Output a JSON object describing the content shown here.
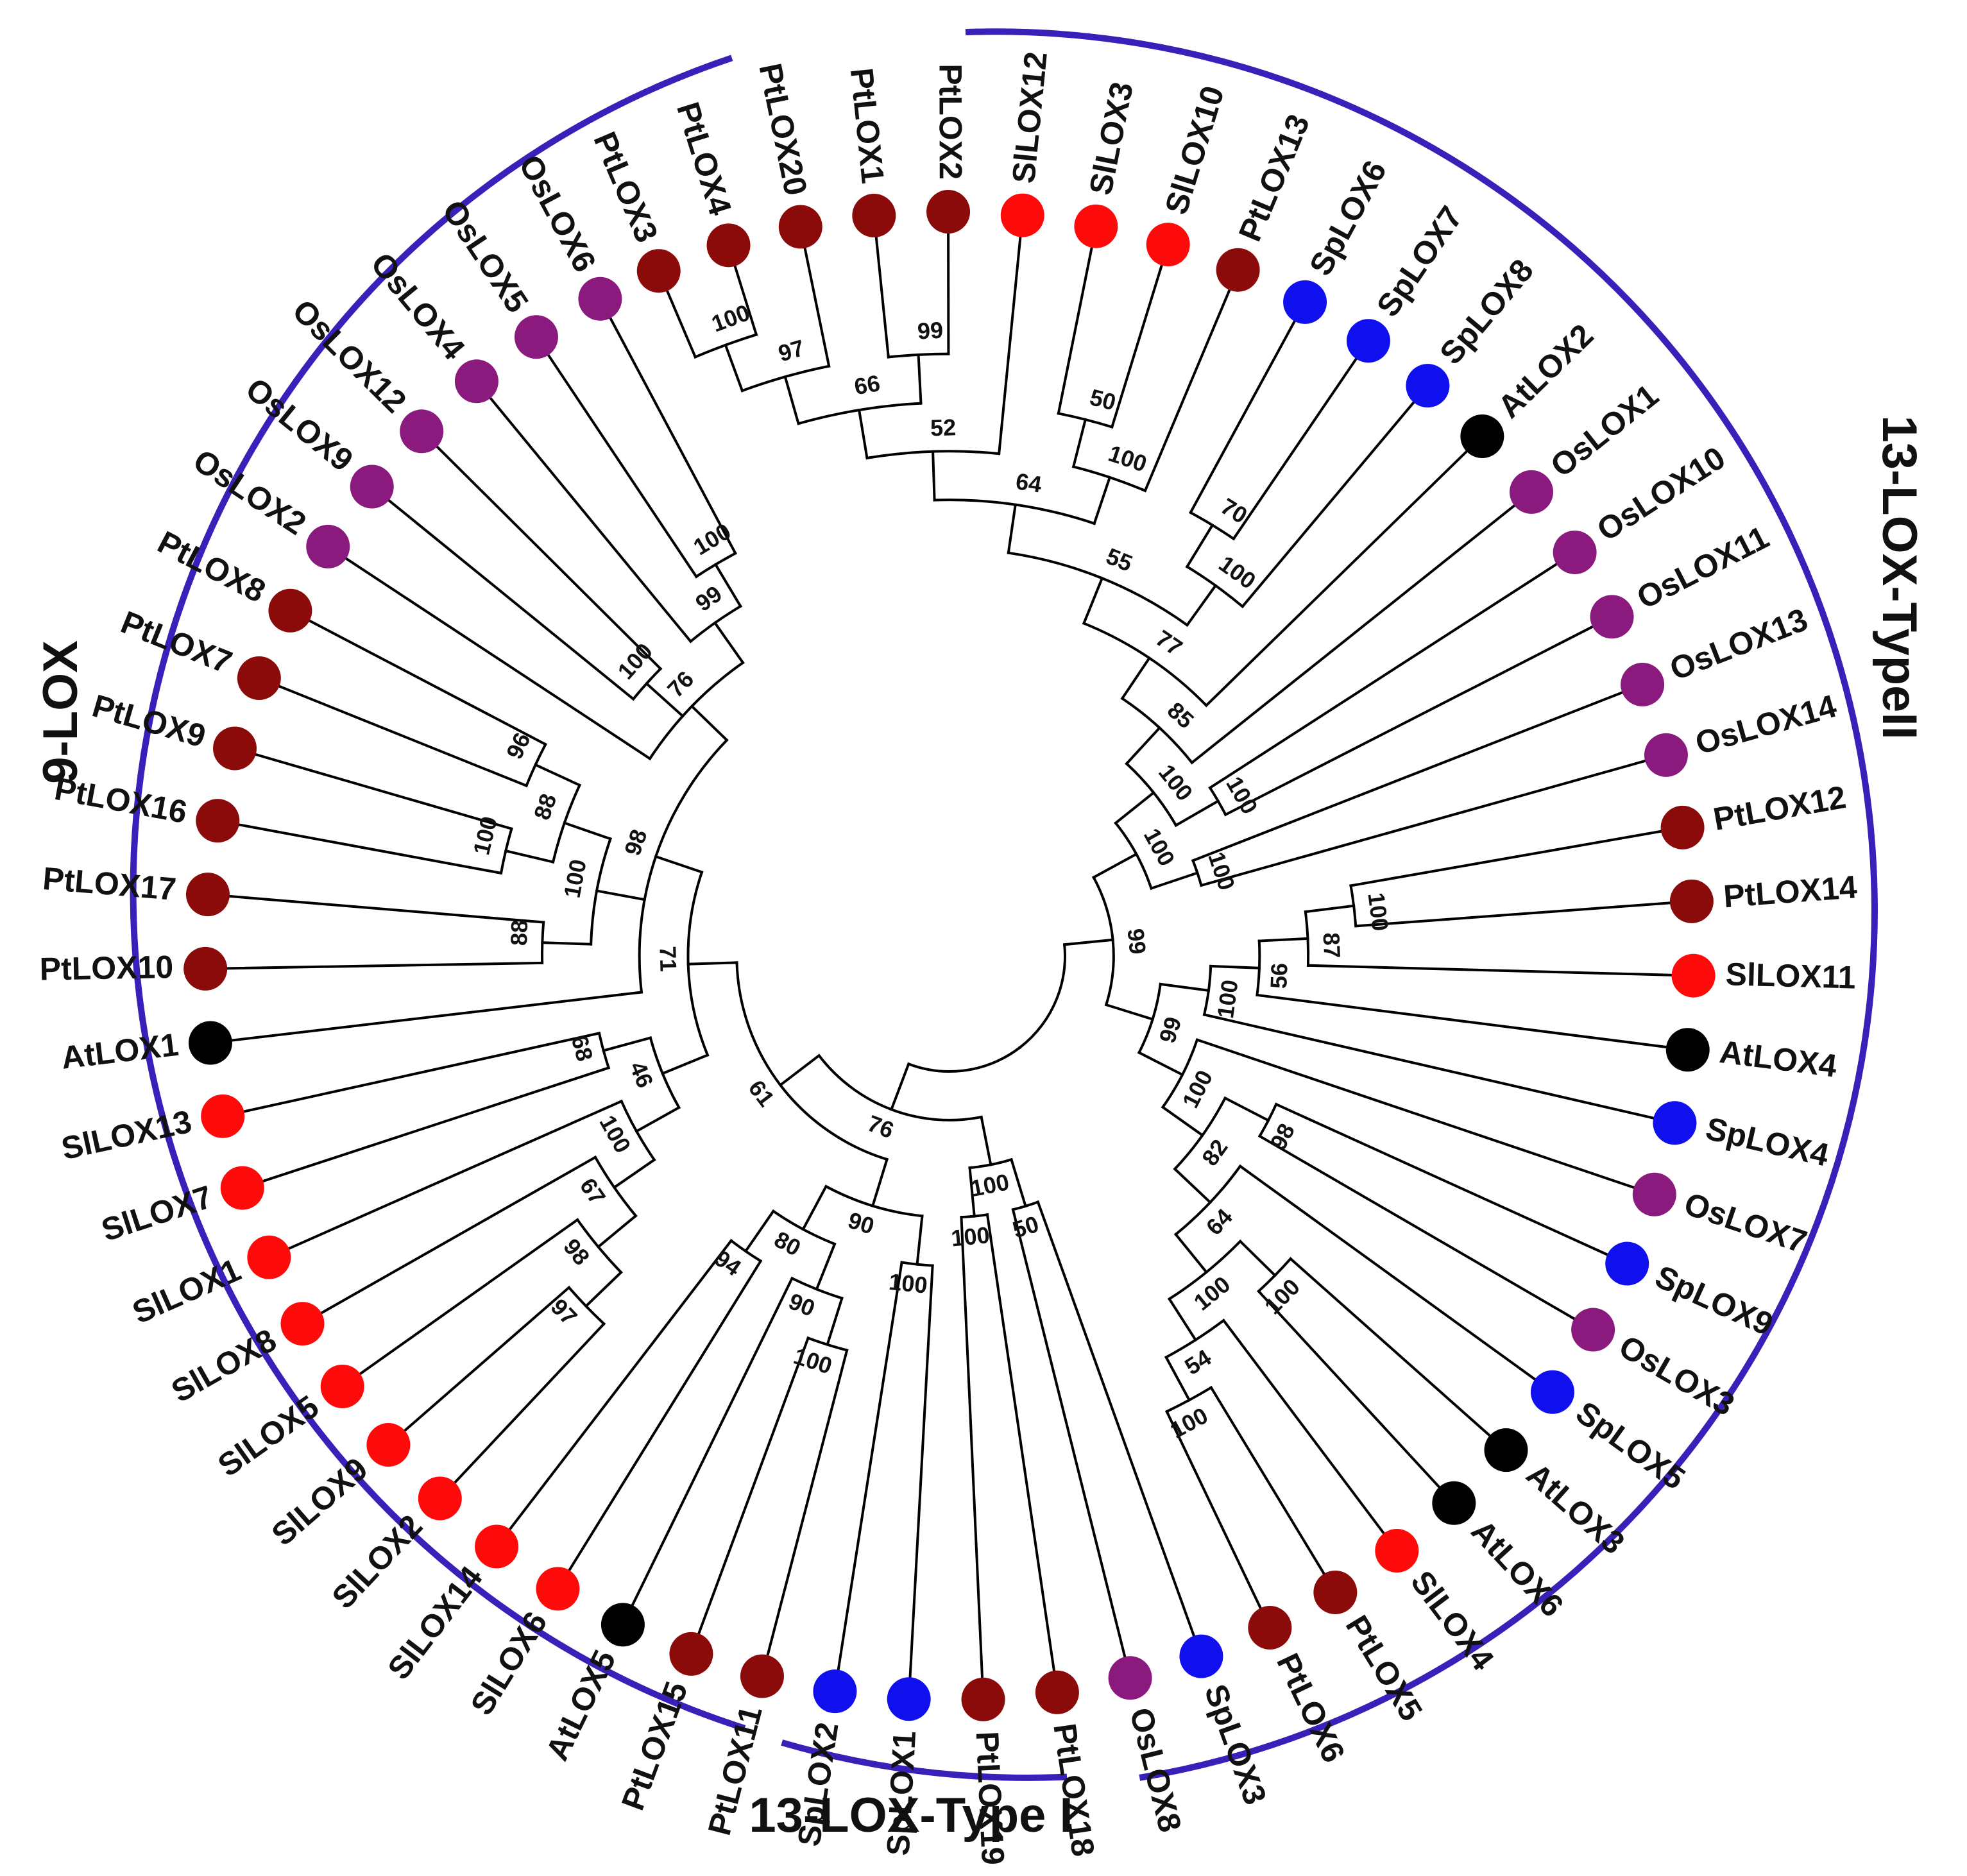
{
  "colors": {
    "Pt": "#8b0a0a",
    "Sl": "#ff0a0a",
    "Os": "#8a1a7e",
    "Sp": "#1010ee",
    "At": "#000000",
    "arc": "#3a1fb8"
  },
  "groups": [
    {
      "id": "9lox",
      "label": "9-LOX"
    },
    {
      "id": "13lox2",
      "label": "13-LOX-TypeII"
    },
    {
      "id": "13lox1",
      "label": "13-LOX-Type I"
    }
  ],
  "tree": {
    "ch": [
      {
        "b": "76",
        "ch": [
          {
            "b": "61",
            "ch": [
              {
                "b": "71",
                "ch": [
                  {
                    "b": "98",
                    "ch": [
                      {
                        "b": "76",
                        "ch": [
                          {
                            "b": "99",
                            "ch": [
                              {
                                "b": "100",
                                "ch": [
                                  {
                                    "n": "OsLOX6"
                                  },
                                  {
                                    "n": "OsLOX5"
                                  }
                                ]
                              },
                              {
                                "n": "OsLOX4"
                              }
                            ]
                          },
                          {
                            "b": "100",
                            "ch": [
                              {
                                "n": "OsLOX12"
                              },
                              {
                                "n": "OsLOX9"
                              }
                            ]
                          },
                          {
                            "n": "OsLOX2"
                          }
                        ]
                      },
                      {
                        "b": "100",
                        "ch": [
                          {
                            "b": "88",
                            "ch": [
                              {
                                "b": "96",
                                "ch": [
                                  {
                                    "n": "PtLOX8"
                                  },
                                  {
                                    "n": "PtLOX7"
                                  }
                                ]
                              },
                              {
                                "b": "100",
                                "ch": [
                                  {
                                    "n": "PtLOX9"
                                  },
                                  {
                                    "n": "PtLOX16"
                                  }
                                ]
                              }
                            ]
                          },
                          {
                            "b": "88",
                            "ch": [
                              {
                                "n": "PtLOX17"
                              },
                              {
                                "n": "PtLOX10"
                              }
                            ]
                          }
                        ]
                      },
                      {
                        "n": "AtLOX1"
                      }
                    ]
                  },
                  {
                    "b": "46",
                    "ch": [
                      {
                        "b": "68",
                        "ch": [
                          {
                            "n": "SlLOX13"
                          },
                          {
                            "n": "SlLOX7"
                          }
                        ]
                      },
                      {
                        "b": "100",
                        "ch": [
                          {
                            "n": "SlLOX1"
                          },
                          {
                            "b": "67",
                            "ch": [
                              {
                                "n": "SlLOX8"
                              },
                              {
                                "b": "98",
                                "ch": [
                                  {
                                    "n": "SlLOX5"
                                  },
                                  {
                                    "b": "97",
                                    "ch": [
                                      {
                                        "n": "SlLOX9"
                                      },
                                      {
                                        "n": "SlLOX2"
                                      }
                                    ]
                                  }
                                ]
                              }
                            ]
                          }
                        ]
                      }
                    ]
                  }
                ]
              },
              {
                "b": "90",
                "ch": [
                  {
                    "b": "80",
                    "ch": [
                      {
                        "b": "94",
                        "ch": [
                          {
                            "n": "SlLOX14"
                          },
                          {
                            "n": "SlLOX6"
                          }
                        ]
                      },
                      {
                        "b": "90",
                        "ch": [
                          {
                            "n": "AtLOX5"
                          },
                          {
                            "b": "100",
                            "ch": [
                              {
                                "n": "PtLOX15"
                              },
                              {
                                "n": "PtLOX11"
                              }
                            ]
                          }
                        ]
                      }
                    ]
                  },
                  {
                    "b": "100",
                    "ch": [
                      {
                        "n": "SpLOX2"
                      },
                      {
                        "n": "SpLOX1"
                      }
                    ]
                  }
                ]
              }
            ]
          },
          {
            "b": "100",
            "ch": [
              {
                "b": "100",
                "ch": [
                  {
                    "n": "PtLOX19"
                  },
                  {
                    "n": "PtLOX18"
                  }
                ]
              },
              {
                "b": "50",
                "ch": [
                  {
                    "n": "OsLOX8"
                  },
                  {
                    "n": "SpLOX3"
                  }
                ]
              }
            ]
          }
        ]
      },
      {
        "b": "99",
        "ch": [
          {
            "b": "99",
            "ch": [
              {
                "b": "100",
                "ch": [
                  {
                    "b": "82",
                    "ch": [
                      {
                        "b": "64",
                        "ch": [
                          {
                            "b": "100",
                            "ch": [
                              {
                                "b": "54",
                                "ch": [
                                  {
                                    "b": "100",
                                    "ch": [
                                      {
                                        "n": "PtLOX6"
                                      },
                                      {
                                        "n": "PtLOX5"
                                      }
                                    ]
                                  },
                                  {
                                    "n": "SlLOX4"
                                  }
                                ]
                              },
                              {
                                "b": "100",
                                "ch": [
                                  {
                                    "n": "AtLOX6"
                                  },
                                  {
                                    "n": "AtLOX3"
                                  }
                                ]
                              }
                            ]
                          },
                          {
                            "n": "SpLOX5"
                          }
                        ]
                      },
                      {
                        "b": "98",
                        "ch": [
                          {
                            "n": "OsLOX3"
                          },
                          {
                            "n": "SpLOX9"
                          }
                        ]
                      }
                    ]
                  },
                  {
                    "n": "OsLOX7"
                  }
                ]
              },
              {
                "b": "100",
                "ch": [
                  {
                    "n": "SpLOX4"
                  },
                  {
                    "b": "56",
                    "ch": [
                      {
                        "n": "AtLOX4"
                      },
                      {
                        "b": "87",
                        "ch": [
                          {
                            "n": "SlLOX11"
                          },
                          {
                            "b": "100",
                            "ch": [
                              {
                                "n": "PtLOX14"
                              },
                              {
                                "n": "PtLOX12"
                              }
                            ]
                          }
                        ]
                      }
                    ]
                  }
                ]
              }
            ]
          },
          {
            "b": "100",
            "ch": [
              {
                "b": "100",
                "ch": [
                  {
                    "n": "OsLOX14"
                  },
                  {
                    "n": "OsLOX13"
                  }
                ]
              },
              {
                "b": "100",
                "ch": [
                  {
                    "b": "100",
                    "ch": [
                      {
                        "n": "OsLOX11"
                      },
                      {
                        "n": "OsLOX10"
                      }
                    ]
                  },
                  {
                    "b": "85",
                    "ch": [
                      {
                        "n": "OsLOX1"
                      },
                      {
                        "b": "77",
                        "ch": [
                          {
                            "n": "AtLOX2"
                          },
                          {
                            "b": "55",
                            "ch": [
                              {
                                "b": "100",
                                "ch": [
                                  {
                                    "n": "SpLOX8"
                                  },
                                  {
                                    "b": "70",
                                    "ch": [
                                      {
                                        "n": "SpLOX7"
                                      },
                                      {
                                        "n": "SpLOX6"
                                      }
                                    ]
                                  }
                                ]
                              },
                              {
                                "b": "64",
                                "ch": [
                                  {
                                    "b": "100",
                                    "ch": [
                                      {
                                        "n": "PtLOX13"
                                      },
                                      {
                                        "b": "50",
                                        "ch": [
                                          {
                                            "n": "SlLOX10"
                                          },
                                          {
                                            "n": "SlLOX3"
                                          }
                                        ]
                                      }
                                    ]
                                  },
                                  {
                                    "b": "52",
                                    "ch": [
                                      {
                                        "n": "SlLOX12"
                                      },
                                      {
                                        "b": "66",
                                        "ch": [
                                          {
                                            "b": "99",
                                            "ch": [
                                              {
                                                "n": "PtLOX2"
                                              },
                                              {
                                                "n": "PtLOX1"
                                              }
                                            ]
                                          },
                                          {
                                            "b": "97",
                                            "ch": [
                                              {
                                                "n": "PtLOX20"
                                              },
                                              {
                                                "b": "100",
                                                "ch": [
                                                  {
                                                    "n": "PtLOX4"
                                                  },
                                                  {
                                                    "n": "PtLOX3"
                                                  }
                                                ]
                                              }
                                            ]
                                          }
                                        ]
                                      }
                                    ]
                                  }
                                ]
                              }
                            ]
                          }
                        ]
                      }
                    ]
                  }
                ]
              }
            ]
          }
        ]
      }
    ]
  }
}
